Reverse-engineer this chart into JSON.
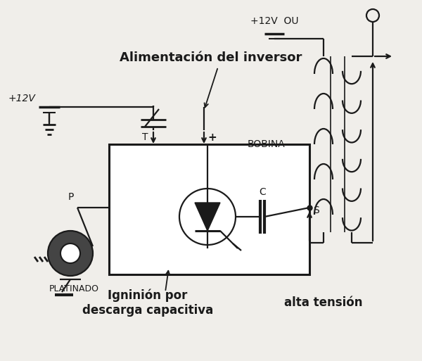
{
  "bg_color": "#f0eeea",
  "line_color": "#1a1a1a",
  "labels": {
    "alimentacion": "Alimentación del inversor",
    "bobina": "BOBINA",
    "plus12v_top": "+12V  OU",
    "plus12v_left": "+12V",
    "T": "T",
    "plus": "+",
    "C": "C",
    "S": "S",
    "P": "P",
    "platinado": "PLATINADO",
    "igninion": "Igninión por\ndescarga capacitiva",
    "alta_tension": "alta tensión"
  },
  "figsize": [
    6.0,
    5.13
  ],
  "dpi": 100
}
